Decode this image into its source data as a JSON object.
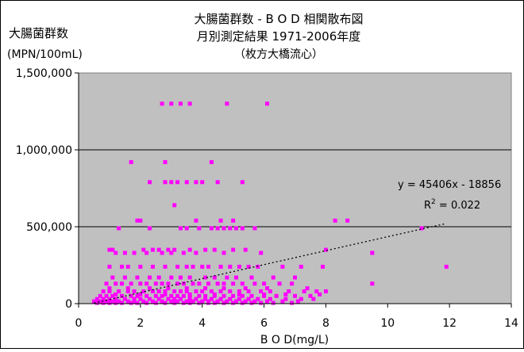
{
  "chart_data": {
    "type": "scatter",
    "title": "大腸菌群数 - B O D 相関散布図",
    "subtitle": "月別測定結果 1971-2006年度",
    "location": "（枚方大橋流心）",
    "ylabel": "大腸菌群数",
    "yunit": "(MPN/100mL)",
    "xlabel": "B O D(mg/L)",
    "xlim": [
      0,
      14
    ],
    "ylim": [
      0,
      1500000
    ],
    "x_ticks": [
      "0",
      "2",
      "4",
      "6",
      "8",
      "10",
      "12",
      "14"
    ],
    "y_ticks": [
      "0",
      "500,000",
      "1,000,000",
      "1,500,000"
    ],
    "grid": "horizontal",
    "plot_background": "#c0c0c0",
    "point_color": "#ff00ff",
    "trendline": {
      "style": "dotted",
      "slope": 45406,
      "intercept": -18856,
      "x_range": [
        0.5,
        11.9
      ],
      "equation_text": "y = 45406x - 18856",
      "r2_prefix": "R",
      "r2_exponent": "2",
      "r2_suffix": " = 0.022"
    },
    "points": [
      [
        2.7,
        1300000
      ],
      [
        3.0,
        1300000
      ],
      [
        3.3,
        1300000
      ],
      [
        3.6,
        1300000
      ],
      [
        4.8,
        1300000
      ],
      [
        6.1,
        1300000
      ],
      [
        1.7,
        920000
      ],
      [
        2.8,
        920000
      ],
      [
        4.3,
        920000
      ],
      [
        2.3,
        790000
      ],
      [
        2.8,
        790000
      ],
      [
        3.0,
        790000
      ],
      [
        3.2,
        790000
      ],
      [
        3.5,
        790000
      ],
      [
        3.8,
        790000
      ],
      [
        4.0,
        790000
      ],
      [
        4.5,
        790000
      ],
      [
        5.3,
        790000
      ],
      [
        3.1,
        640000
      ],
      [
        1.9,
        540000
      ],
      [
        2.0,
        540000
      ],
      [
        3.8,
        540000
      ],
      [
        4.6,
        540000
      ],
      [
        5.0,
        540000
      ],
      [
        8.3,
        540000
      ],
      [
        8.7,
        540000
      ],
      [
        1.3,
        490000
      ],
      [
        2.3,
        490000
      ],
      [
        3.3,
        490000
      ],
      [
        3.5,
        490000
      ],
      [
        3.9,
        490000
      ],
      [
        4.3,
        490000
      ],
      [
        4.5,
        490000
      ],
      [
        4.7,
        490000
      ],
      [
        4.9,
        490000
      ],
      [
        5.1,
        490000
      ],
      [
        5.3,
        490000
      ],
      [
        5.7,
        490000
      ],
      [
        11.1,
        490000
      ],
      [
        1.0,
        350000
      ],
      [
        1.1,
        350000
      ],
      [
        2.1,
        350000
      ],
      [
        2.4,
        350000
      ],
      [
        2.6,
        350000
      ],
      [
        2.9,
        350000
      ],
      [
        3.1,
        350000
      ],
      [
        3.6,
        350000
      ],
      [
        4.1,
        350000
      ],
      [
        4.4,
        350000
      ],
      [
        5.0,
        350000
      ],
      [
        5.4,
        350000
      ],
      [
        8.0,
        350000
      ],
      [
        1.2,
        330000
      ],
      [
        1.5,
        330000
      ],
      [
        1.8,
        330000
      ],
      [
        2.2,
        330000
      ],
      [
        2.7,
        330000
      ],
      [
        3.0,
        330000
      ],
      [
        3.4,
        330000
      ],
      [
        3.8,
        330000
      ],
      [
        4.7,
        330000
      ],
      [
        5.9,
        330000
      ],
      [
        9.5,
        330000
      ],
      [
        1.0,
        240000
      ],
      [
        1.4,
        240000
      ],
      [
        1.6,
        240000
      ],
      [
        2.0,
        240000
      ],
      [
        2.4,
        240000
      ],
      [
        2.8,
        240000
      ],
      [
        3.2,
        240000
      ],
      [
        3.5,
        240000
      ],
      [
        3.7,
        240000
      ],
      [
        4.0,
        240000
      ],
      [
        4.2,
        240000
      ],
      [
        4.6,
        240000
      ],
      [
        4.9,
        240000
      ],
      [
        5.2,
        240000
      ],
      [
        5.5,
        240000
      ],
      [
        5.8,
        240000
      ],
      [
        6.6,
        240000
      ],
      [
        7.2,
        240000
      ],
      [
        7.9,
        240000
      ],
      [
        11.9,
        240000
      ],
      [
        1.1,
        170000
      ],
      [
        1.5,
        170000
      ],
      [
        1.9,
        170000
      ],
      [
        2.3,
        170000
      ],
      [
        2.6,
        170000
      ],
      [
        3.0,
        170000
      ],
      [
        3.3,
        170000
      ],
      [
        3.6,
        170000
      ],
      [
        4.1,
        170000
      ],
      [
        4.4,
        170000
      ],
      [
        4.8,
        170000
      ],
      [
        5.1,
        170000
      ],
      [
        5.6,
        170000
      ],
      [
        6.3,
        170000
      ],
      [
        7.0,
        170000
      ],
      [
        0.9,
        130000
      ],
      [
        1.2,
        130000
      ],
      [
        1.4,
        130000
      ],
      [
        1.7,
        130000
      ],
      [
        2.0,
        130000
      ],
      [
        2.2,
        130000
      ],
      [
        2.5,
        130000
      ],
      [
        2.7,
        130000
      ],
      [
        2.9,
        130000
      ],
      [
        3.2,
        130000
      ],
      [
        3.4,
        130000
      ],
      [
        3.7,
        130000
      ],
      [
        3.9,
        130000
      ],
      [
        4.2,
        130000
      ],
      [
        4.5,
        130000
      ],
      [
        4.7,
        130000
      ],
      [
        5.0,
        130000
      ],
      [
        5.3,
        130000
      ],
      [
        5.7,
        130000
      ],
      [
        6.0,
        130000
      ],
      [
        6.5,
        130000
      ],
      [
        6.9,
        130000
      ],
      [
        9.5,
        130000
      ],
      [
        0.8,
        80000
      ],
      [
        1.0,
        80000
      ],
      [
        1.3,
        80000
      ],
      [
        1.6,
        80000
      ],
      [
        1.8,
        80000
      ],
      [
        2.1,
        80000
      ],
      [
        2.4,
        80000
      ],
      [
        2.6,
        80000
      ],
      [
        2.8,
        80000
      ],
      [
        3.1,
        80000
      ],
      [
        3.3,
        80000
      ],
      [
        3.5,
        80000
      ],
      [
        3.8,
        80000
      ],
      [
        4.0,
        80000
      ],
      [
        4.3,
        80000
      ],
      [
        4.6,
        80000
      ],
      [
        4.9,
        80000
      ],
      [
        5.2,
        80000
      ],
      [
        5.5,
        80000
      ],
      [
        5.9,
        80000
      ],
      [
        6.2,
        80000
      ],
      [
        6.8,
        80000
      ],
      [
        7.3,
        80000
      ],
      [
        7.7,
        80000
      ],
      [
        8.0,
        80000
      ],
      [
        0.7,
        50000
      ],
      [
        0.9,
        50000
      ],
      [
        1.1,
        50000
      ],
      [
        1.4,
        50000
      ],
      [
        1.7,
        50000
      ],
      [
        1.9,
        50000
      ],
      [
        2.2,
        50000
      ],
      [
        2.5,
        50000
      ],
      [
        2.7,
        50000
      ],
      [
        3.0,
        50000
      ],
      [
        3.2,
        50000
      ],
      [
        3.4,
        50000
      ],
      [
        3.6,
        50000
      ],
      [
        3.9,
        50000
      ],
      [
        4.1,
        50000
      ],
      [
        4.4,
        50000
      ],
      [
        4.7,
        50000
      ],
      [
        5.0,
        50000
      ],
      [
        5.3,
        50000
      ],
      [
        5.6,
        50000
      ],
      [
        6.0,
        50000
      ],
      [
        6.4,
        50000
      ],
      [
        7.0,
        50000
      ],
      [
        7.5,
        50000
      ],
      [
        0.6,
        30000
      ],
      [
        0.8,
        30000
      ],
      [
        1.0,
        30000
      ],
      [
        1.2,
        30000
      ],
      [
        1.5,
        30000
      ],
      [
        1.8,
        30000
      ],
      [
        2.0,
        30000
      ],
      [
        2.3,
        30000
      ],
      [
        2.6,
        30000
      ],
      [
        2.9,
        30000
      ],
      [
        3.1,
        30000
      ],
      [
        3.3,
        30000
      ],
      [
        3.6,
        30000
      ],
      [
        3.8,
        30000
      ],
      [
        4.1,
        30000
      ],
      [
        4.3,
        30000
      ],
      [
        4.6,
        30000
      ],
      [
        4.9,
        30000
      ],
      [
        5.2,
        30000
      ],
      [
        5.5,
        30000
      ],
      [
        5.8,
        30000
      ],
      [
        6.2,
        30000
      ],
      [
        6.7,
        30000
      ],
      [
        7.2,
        30000
      ],
      [
        7.6,
        30000
      ],
      [
        0.5,
        15000
      ],
      [
        0.7,
        15000
      ],
      [
        0.9,
        15000
      ],
      [
        1.1,
        15000
      ],
      [
        1.3,
        15000
      ],
      [
        1.6,
        15000
      ],
      [
        1.8,
        15000
      ],
      [
        2.1,
        15000
      ],
      [
        2.4,
        15000
      ],
      [
        2.7,
        15000
      ],
      [
        3.0,
        15000
      ],
      [
        3.2,
        15000
      ],
      [
        3.5,
        15000
      ],
      [
        3.7,
        15000
      ],
      [
        4.0,
        15000
      ],
      [
        4.2,
        15000
      ],
      [
        4.5,
        15000
      ],
      [
        4.8,
        15000
      ],
      [
        5.1,
        15000
      ],
      [
        5.4,
        15000
      ],
      [
        5.7,
        15000
      ],
      [
        6.1,
        15000
      ],
      [
        6.6,
        15000
      ],
      [
        7.1,
        15000
      ],
      [
        0.6,
        5000
      ],
      [
        0.8,
        5000
      ],
      [
        1.0,
        5000
      ],
      [
        1.2,
        5000
      ],
      [
        1.4,
        5000
      ],
      [
        1.7,
        5000
      ],
      [
        1.9,
        5000
      ],
      [
        2.2,
        5000
      ],
      [
        2.5,
        5000
      ],
      [
        2.8,
        5000
      ],
      [
        3.1,
        5000
      ],
      [
        3.4,
        5000
      ],
      [
        3.6,
        5000
      ],
      [
        3.9,
        5000
      ],
      [
        4.2,
        5000
      ],
      [
        4.4,
        5000
      ],
      [
        4.7,
        5000
      ],
      [
        5.0,
        5000
      ],
      [
        5.3,
        5000
      ],
      [
        5.6,
        5000
      ],
      [
        5.9,
        5000
      ],
      [
        6.3,
        5000
      ],
      [
        6.9,
        5000
      ],
      [
        1.0,
        100000
      ],
      [
        1.6,
        100000
      ],
      [
        2.3,
        100000
      ],
      [
        2.9,
        100000
      ],
      [
        3.5,
        100000
      ],
      [
        4.1,
        100000
      ],
      [
        4.7,
        100000
      ],
      [
        5.4,
        100000
      ],
      [
        6.1,
        100000
      ],
      [
        7.4,
        100000
      ],
      [
        1.2,
        60000
      ],
      [
        2.0,
        60000
      ],
      [
        2.8,
        60000
      ],
      [
        3.6,
        60000
      ],
      [
        4.4,
        60000
      ],
      [
        5.2,
        60000
      ],
      [
        6.0,
        60000
      ],
      [
        6.7,
        60000
      ],
      [
        7.8,
        60000
      ]
    ]
  }
}
